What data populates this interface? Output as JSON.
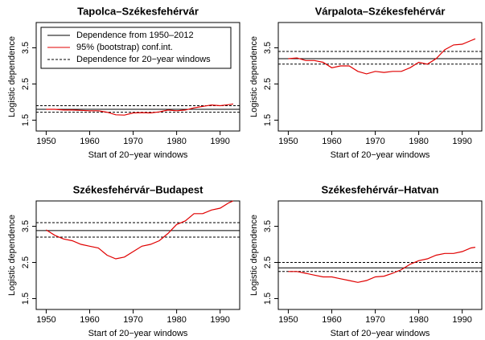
{
  "chart_data": [
    {
      "type": "line",
      "title": "Tapolca–Székesfehérvár",
      "xlabel": "Start of 20−year windows",
      "ylabel": "Logistic dependence",
      "legend": [
        "Dependence from 1950–2012",
        "95% (bootstrap) conf.int.",
        "Dependence for 20−year windows"
      ],
      "x": [
        1950,
        1952,
        1954,
        1956,
        1958,
        1960,
        1962,
        1964,
        1966,
        1968,
        1970,
        1972,
        1974,
        1976,
        1978,
        1980,
        1982,
        1984,
        1986,
        1988,
        1990,
        1992,
        1993
      ],
      "series": [
        {
          "color": "#e00000",
          "values": [
            1.8,
            1.8,
            1.78,
            1.78,
            1.77,
            1.76,
            1.76,
            1.72,
            1.65,
            1.64,
            1.7,
            1.71,
            1.7,
            1.73,
            1.78,
            1.76,
            1.78,
            1.84,
            1.88,
            1.92,
            1.9,
            1.93,
            1.95
          ]
        }
      ],
      "reference": 1.8,
      "conf_int": [
        1.72,
        1.9
      ],
      "xlim": [
        1947.7,
        1994.5
      ],
      "ylim": [
        1.2,
        4.2
      ],
      "xticks": [
        1950,
        1960,
        1970,
        1980,
        1990
      ],
      "yticks": [
        1.5,
        2.5,
        3.5
      ]
    },
    {
      "type": "line",
      "title": "Várpalota–Székesfehérvár",
      "xlabel": "Start of 20−year windows",
      "ylabel": "Logistic dependence",
      "x": [
        1950,
        1952,
        1954,
        1956,
        1958,
        1960,
        1962,
        1964,
        1966,
        1968,
        1970,
        1972,
        1974,
        1976,
        1978,
        1980,
        1982,
        1984,
        1986,
        1988,
        1990,
        1992,
        1993
      ],
      "series": [
        {
          "color": "#e00000",
          "values": [
            3.2,
            3.22,
            3.15,
            3.15,
            3.1,
            2.95,
            3.0,
            3.0,
            2.85,
            2.78,
            2.85,
            2.82,
            2.85,
            2.85,
            2.95,
            3.1,
            3.05,
            3.2,
            3.45,
            3.58,
            3.6,
            3.7,
            3.75
          ]
        }
      ],
      "reference": 3.2,
      "conf_int": [
        3.05,
        3.4
      ],
      "xlim": [
        1947.7,
        1994.5
      ],
      "ylim": [
        1.2,
        4.2
      ],
      "xticks": [
        1950,
        1960,
        1970,
        1980,
        1990
      ],
      "yticks": [
        1.5,
        2.5,
        3.5
      ]
    },
    {
      "type": "line",
      "title": "Székesfehérvár–Budapest",
      "xlabel": "Start of 20−year windows",
      "ylabel": "Logistic dependence",
      "x": [
        1950,
        1952,
        1954,
        1956,
        1958,
        1960,
        1962,
        1964,
        1966,
        1968,
        1970,
        1972,
        1974,
        1976,
        1978,
        1980,
        1982,
        1984,
        1986,
        1988,
        1990,
        1992,
        1993
      ],
      "series": [
        {
          "color": "#e00000",
          "values": [
            3.4,
            3.25,
            3.15,
            3.1,
            3.0,
            2.95,
            2.9,
            2.7,
            2.6,
            2.65,
            2.8,
            2.95,
            3.0,
            3.1,
            3.3,
            3.55,
            3.65,
            3.85,
            3.85,
            3.95,
            4.0,
            4.15,
            4.2
          ]
        }
      ],
      "reference": 3.38,
      "conf_int": [
        3.2,
        3.6
      ],
      "xlim": [
        1947.7,
        1994.5
      ],
      "ylim": [
        1.2,
        4.2
      ],
      "xticks": [
        1950,
        1960,
        1970,
        1980,
        1990
      ],
      "yticks": [
        1.5,
        2.5,
        3.5
      ]
    },
    {
      "type": "line",
      "title": "Székesfehérvár–Hatvan",
      "xlabel": "Start of 20−year windows",
      "ylabel": "Logistic dependence",
      "x": [
        1950,
        1952,
        1954,
        1956,
        1958,
        1960,
        1962,
        1964,
        1966,
        1968,
        1970,
        1972,
        1974,
        1976,
        1978,
        1980,
        1982,
        1984,
        1986,
        1988,
        1990,
        1992,
        1993
      ],
      "series": [
        {
          "color": "#e00000",
          "values": [
            2.25,
            2.25,
            2.2,
            2.15,
            2.1,
            2.1,
            2.05,
            2.0,
            1.95,
            2.0,
            2.1,
            2.12,
            2.2,
            2.3,
            2.45,
            2.55,
            2.6,
            2.7,
            2.75,
            2.75,
            2.8,
            2.9,
            2.92
          ]
        }
      ],
      "reference": 2.35,
      "conf_int": [
        2.25,
        2.5
      ],
      "xlim": [
        1947.7,
        1994.5
      ],
      "ylim": [
        1.2,
        4.2
      ],
      "xticks": [
        1950,
        1960,
        1970,
        1980,
        1990
      ],
      "yticks": [
        1.5,
        2.5,
        3.5
      ]
    }
  ]
}
